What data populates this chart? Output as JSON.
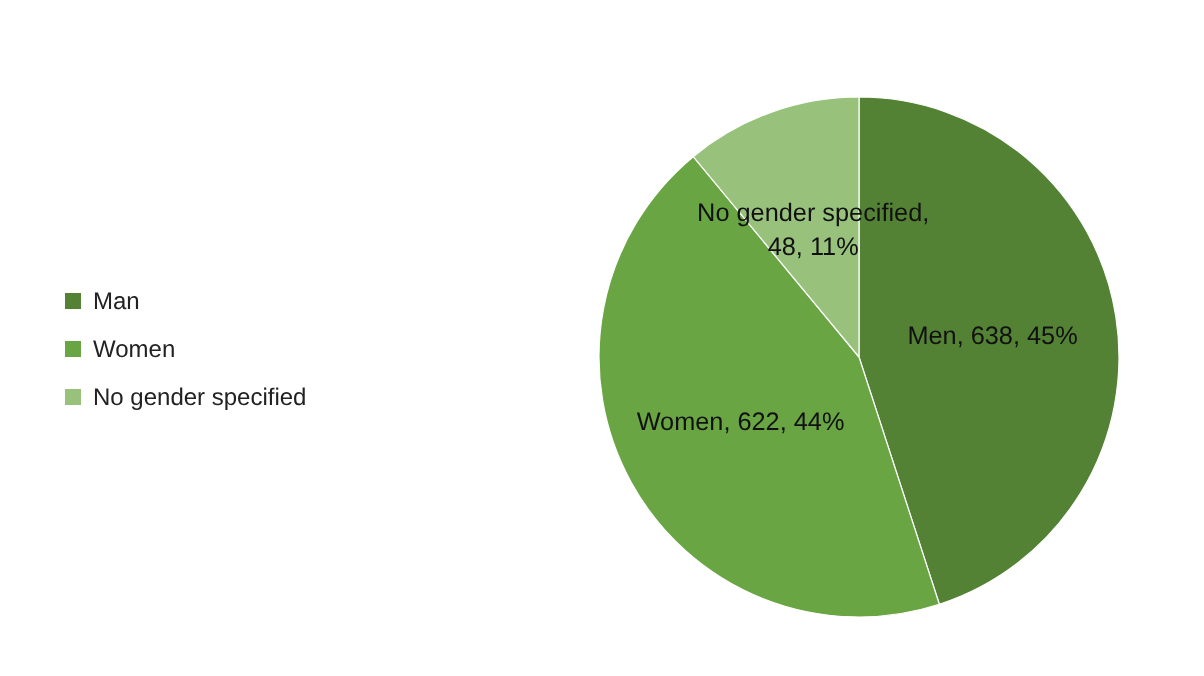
{
  "chart_data": {
    "type": "pie",
    "categories": [
      "Man",
      "Women",
      "No gender specified"
    ],
    "values": [
      45,
      44,
      11
    ],
    "colors": [
      "#548235",
      "#6aa544",
      "#98c27c"
    ],
    "value_labels": [
      "Men, 638, 45%",
      "Women, 622, 44%",
      "No gender specified, 48, 11%"
    ],
    "legend": "left"
  }
}
